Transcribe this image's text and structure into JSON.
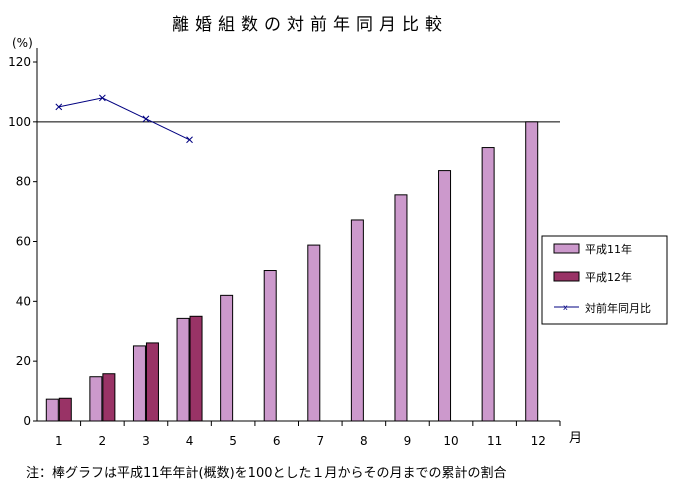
{
  "chart_data": {
    "type": "bar",
    "title": "離婚組数の対前年同月比較",
    "ylabel": "(%)",
    "xlabel": "月",
    "ylim": [
      0,
      120
    ],
    "yticks": [
      0,
      20,
      40,
      60,
      80,
      100,
      120
    ],
    "categories": [
      "1",
      "2",
      "3",
      "4",
      "5",
      "6",
      "7",
      "8",
      "9",
      "10",
      "11",
      "12"
    ],
    "series": [
      {
        "name": "平成11年",
        "type": "bar",
        "color": "#CC99CC",
        "values": [
          7.3,
          14.8,
          25.1,
          34.3,
          42.0,
          50.3,
          58.8,
          67.2,
          75.6,
          83.7,
          91.4,
          100
        ]
      },
      {
        "name": "平成12年",
        "type": "bar",
        "color": "#993366",
        "values": [
          7.6,
          15.8,
          26.1,
          35.0,
          null,
          null,
          null,
          null,
          null,
          null,
          null,
          null
        ]
      },
      {
        "name": "対前年同月比",
        "type": "line",
        "color": "#000080",
        "marker": "x",
        "values": [
          105,
          108,
          101,
          94,
          null,
          null,
          null,
          null,
          null,
          null,
          null,
          null
        ]
      }
    ],
    "reference_line": 100,
    "legend": "right",
    "note": "注：棒グラフは平成11年年計(概数)を100とした１月からその月までの累計の割合"
  }
}
